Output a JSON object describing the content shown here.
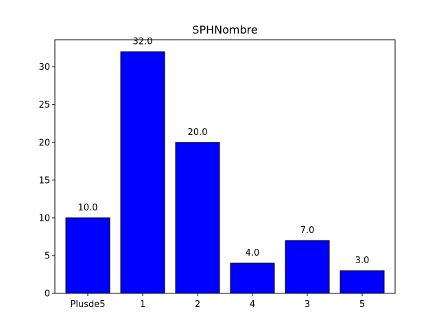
{
  "chart_data": {
    "type": "bar",
    "title": "SPHNombre",
    "xlabel": "",
    "ylabel": "",
    "categories": [
      "Plusde5",
      "1",
      "2",
      "4",
      "3",
      "5"
    ],
    "values": [
      10.0,
      32.0,
      20.0,
      4.0,
      7.0,
      3.0
    ],
    "data_labels": [
      "10.0",
      "32.0",
      "20.0",
      "4.0",
      "7.0",
      "3.0"
    ],
    "ylim": [
      0,
      33.6
    ],
    "yticks": [
      0,
      5,
      10,
      15,
      20,
      25,
      30
    ],
    "ytick_labels": [
      "0",
      "5",
      "10",
      "15",
      "20",
      "25",
      "30"
    ],
    "grid": false,
    "bar_color": "#0000ff",
    "edge_color": "#000000"
  }
}
